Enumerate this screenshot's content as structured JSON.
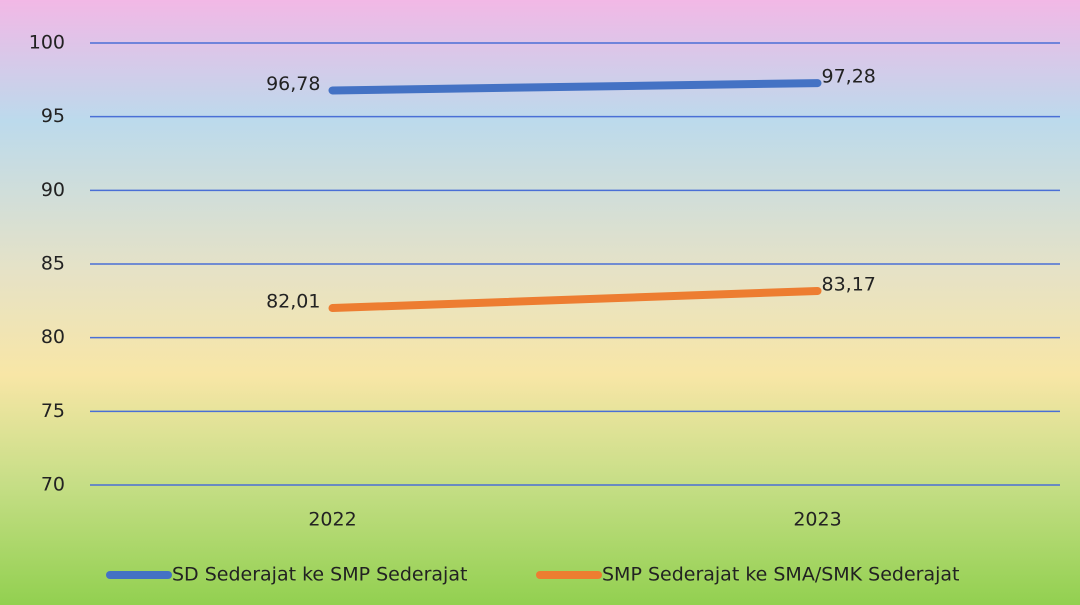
{
  "chart_data": {
    "type": "line",
    "categories": [
      "2022",
      "2023"
    ],
    "series": [
      {
        "name": "SD Sederajat ke SMP Sederajat",
        "color": "#4472c4",
        "values": [
          96.78,
          97.28
        ],
        "value_labels": [
          "96,78",
          "97,28"
        ]
      },
      {
        "name": "SMP Sederajat ke SMA/SMK Sederajat",
        "color": "#ed7d31",
        "values": [
          82.01,
          83.17
        ],
        "value_labels": [
          "82,01",
          "83,17"
        ]
      }
    ],
    "ylim": [
      70,
      100
    ],
    "yticks": [
      70,
      75,
      80,
      85,
      90,
      95,
      100
    ],
    "grid": true,
    "legend": "bottom"
  }
}
